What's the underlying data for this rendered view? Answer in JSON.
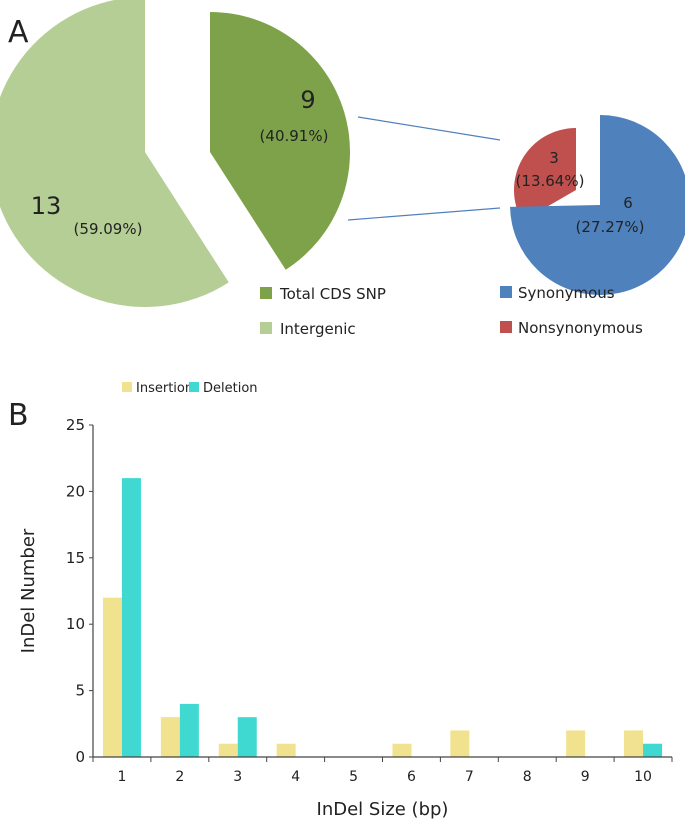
{
  "chart_data": [
    {
      "type": "pie",
      "panel": "A",
      "title": "",
      "slices": [
        {
          "label": "Intergenic",
          "value": 13,
          "percent": "(59.09%)",
          "color": "#b5ce95"
        },
        {
          "label": "Total CDS SNP",
          "value": 9,
          "percent": "(40.91%)",
          "color": "#7ea24a"
        }
      ],
      "legend_placement": "bottom"
    },
    {
      "type": "pie",
      "panel": "A",
      "title": "",
      "breakdown_of": "Total CDS SNP",
      "slices": [
        {
          "label": "Nonsynonymous",
          "value": 3,
          "percent": "(13.64%)",
          "color": "#c0504d"
        },
        {
          "label": "Synonymous",
          "value": 6,
          "percent": "(27.27%)",
          "color": "#4f81bd"
        }
      ],
      "legend_placement": "bottom"
    },
    {
      "type": "bar",
      "panel": "B",
      "title": "",
      "xlabel": "InDel Size (bp)",
      "ylabel": "InDel Number",
      "categories": [
        "1",
        "2",
        "3",
        "4",
        "5",
        "6",
        "7",
        "8",
        "9",
        "10"
      ],
      "series": [
        {
          "name": "Insertion",
          "color": "#f1e28f",
          "values": [
            12,
            3,
            1,
            1,
            0,
            1,
            2,
            0,
            2,
            2
          ]
        },
        {
          "name": "Deletion",
          "color": "#3fd9d1",
          "values": [
            21,
            4,
            3,
            0,
            0,
            0,
            0,
            0,
            0,
            1
          ]
        }
      ],
      "ylim": [
        0,
        25
      ],
      "yticks": [
        "0",
        "5",
        "10",
        "15",
        "20",
        "25"
      ],
      "grid": false,
      "legend_placement": "top-left"
    }
  ]
}
